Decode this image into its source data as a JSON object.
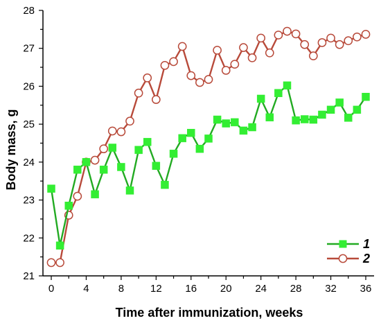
{
  "chart_data": {
    "type": "line",
    "xlabel": "Time after immunization, weeks",
    "ylabel": "Body mass, g",
    "xlim": [
      0,
      36
    ],
    "ylim": [
      21,
      28
    ],
    "x_ticks": [
      "0",
      "4",
      "8",
      "12",
      "16",
      "20",
      "24",
      "28",
      "32",
      "36"
    ],
    "y_ticks": [
      "21",
      "22",
      "23",
      "24",
      "25",
      "26",
      "27",
      "28"
    ],
    "grid": false,
    "legend_position": "bottom-right",
    "x": [
      0,
      1,
      2,
      3,
      4,
      5,
      6,
      7,
      8,
      9,
      10,
      11,
      12,
      13,
      14,
      15,
      16,
      17,
      18,
      19,
      20,
      21,
      22,
      23,
      24,
      25,
      26,
      27,
      28,
      29,
      30,
      31,
      32,
      33,
      34,
      35,
      36
    ],
    "series": [
      {
        "name": "1",
        "color": "#33ee33",
        "line_color": "#22aa22",
        "marker": "filled-square",
        "values": [
          23.3,
          21.8,
          22.85,
          23.8,
          24.0,
          23.15,
          23.8,
          24.38,
          23.87,
          23.25,
          24.32,
          24.53,
          23.9,
          23.4,
          24.22,
          24.63,
          24.77,
          24.35,
          24.62,
          25.12,
          25.02,
          25.05,
          24.83,
          24.92,
          25.67,
          25.18,
          25.82,
          26.02,
          25.1,
          25.13,
          25.12,
          25.25,
          25.38,
          25.57,
          25.17,
          25.38,
          25.72
        ]
      },
      {
        "name": "2",
        "color": "#ffffff",
        "line_color": "#b84a3a",
        "marker": "open-circle",
        "values": [
          21.35,
          21.35,
          22.6,
          23.1,
          24.0,
          24.05,
          24.35,
          24.82,
          24.8,
          25.08,
          25.82,
          26.22,
          25.65,
          26.55,
          26.65,
          27.05,
          26.28,
          26.1,
          26.18,
          26.95,
          26.42,
          26.58,
          27.02,
          26.75,
          27.27,
          26.88,
          27.35,
          27.45,
          27.38,
          27.1,
          26.8,
          27.15,
          27.27,
          27.1,
          27.2,
          27.3,
          27.37
        ]
      }
    ]
  }
}
